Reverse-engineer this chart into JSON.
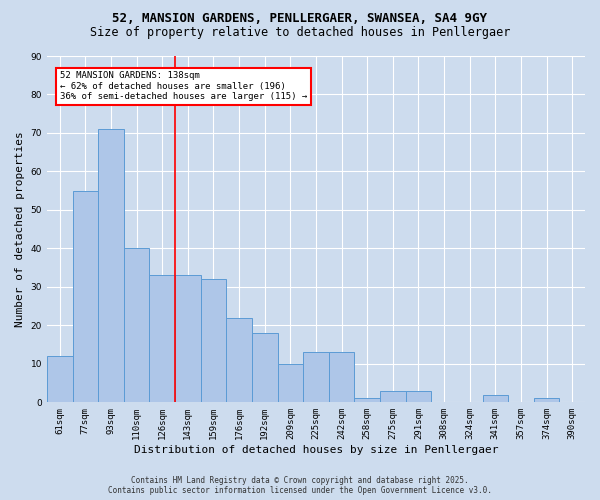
{
  "title": "52, MANSION GARDENS, PENLLERGAER, SWANSEA, SA4 9GY",
  "subtitle": "Size of property relative to detached houses in Penllergaer",
  "xlabel": "Distribution of detached houses by size in Penllergaer",
  "ylabel": "Number of detached properties",
  "categories": [
    "61sqm",
    "77sqm",
    "93sqm",
    "110sqm",
    "126sqm",
    "143sqm",
    "159sqm",
    "176sqm",
    "192sqm",
    "209sqm",
    "225sqm",
    "242sqm",
    "258sqm",
    "275sqm",
    "291sqm",
    "308sqm",
    "324sqm",
    "341sqm",
    "357sqm",
    "374sqm",
    "390sqm"
  ],
  "values": [
    12,
    55,
    71,
    40,
    33,
    33,
    32,
    22,
    18,
    10,
    13,
    13,
    1,
    3,
    3,
    0,
    0,
    2,
    0,
    1,
    0
  ],
  "bar_color": "#aec6e8",
  "bar_edge_color": "#5b9bd5",
  "background_color": "#cddcee",
  "grid_color": "#ffffff",
  "vline_x_idx": 5,
  "vline_color": "red",
  "annotation_text": "52 MANSION GARDENS: 138sqm\n← 62% of detached houses are smaller (196)\n36% of semi-detached houses are larger (115) →",
  "annotation_box_color": "white",
  "annotation_box_edge": "red",
  "ylim": [
    0,
    90
  ],
  "yticks": [
    0,
    10,
    20,
    30,
    40,
    50,
    60,
    70,
    80,
    90
  ],
  "footer_line1": "Contains HM Land Registry data © Crown copyright and database right 2025.",
  "footer_line2": "Contains public sector information licensed under the Open Government Licence v3.0.",
  "title_fontsize": 9,
  "subtitle_fontsize": 8.5,
  "tick_fontsize": 6.5,
  "ylabel_fontsize": 8,
  "xlabel_fontsize": 8,
  "annotation_fontsize": 6.5,
  "footer_fontsize": 5.5
}
